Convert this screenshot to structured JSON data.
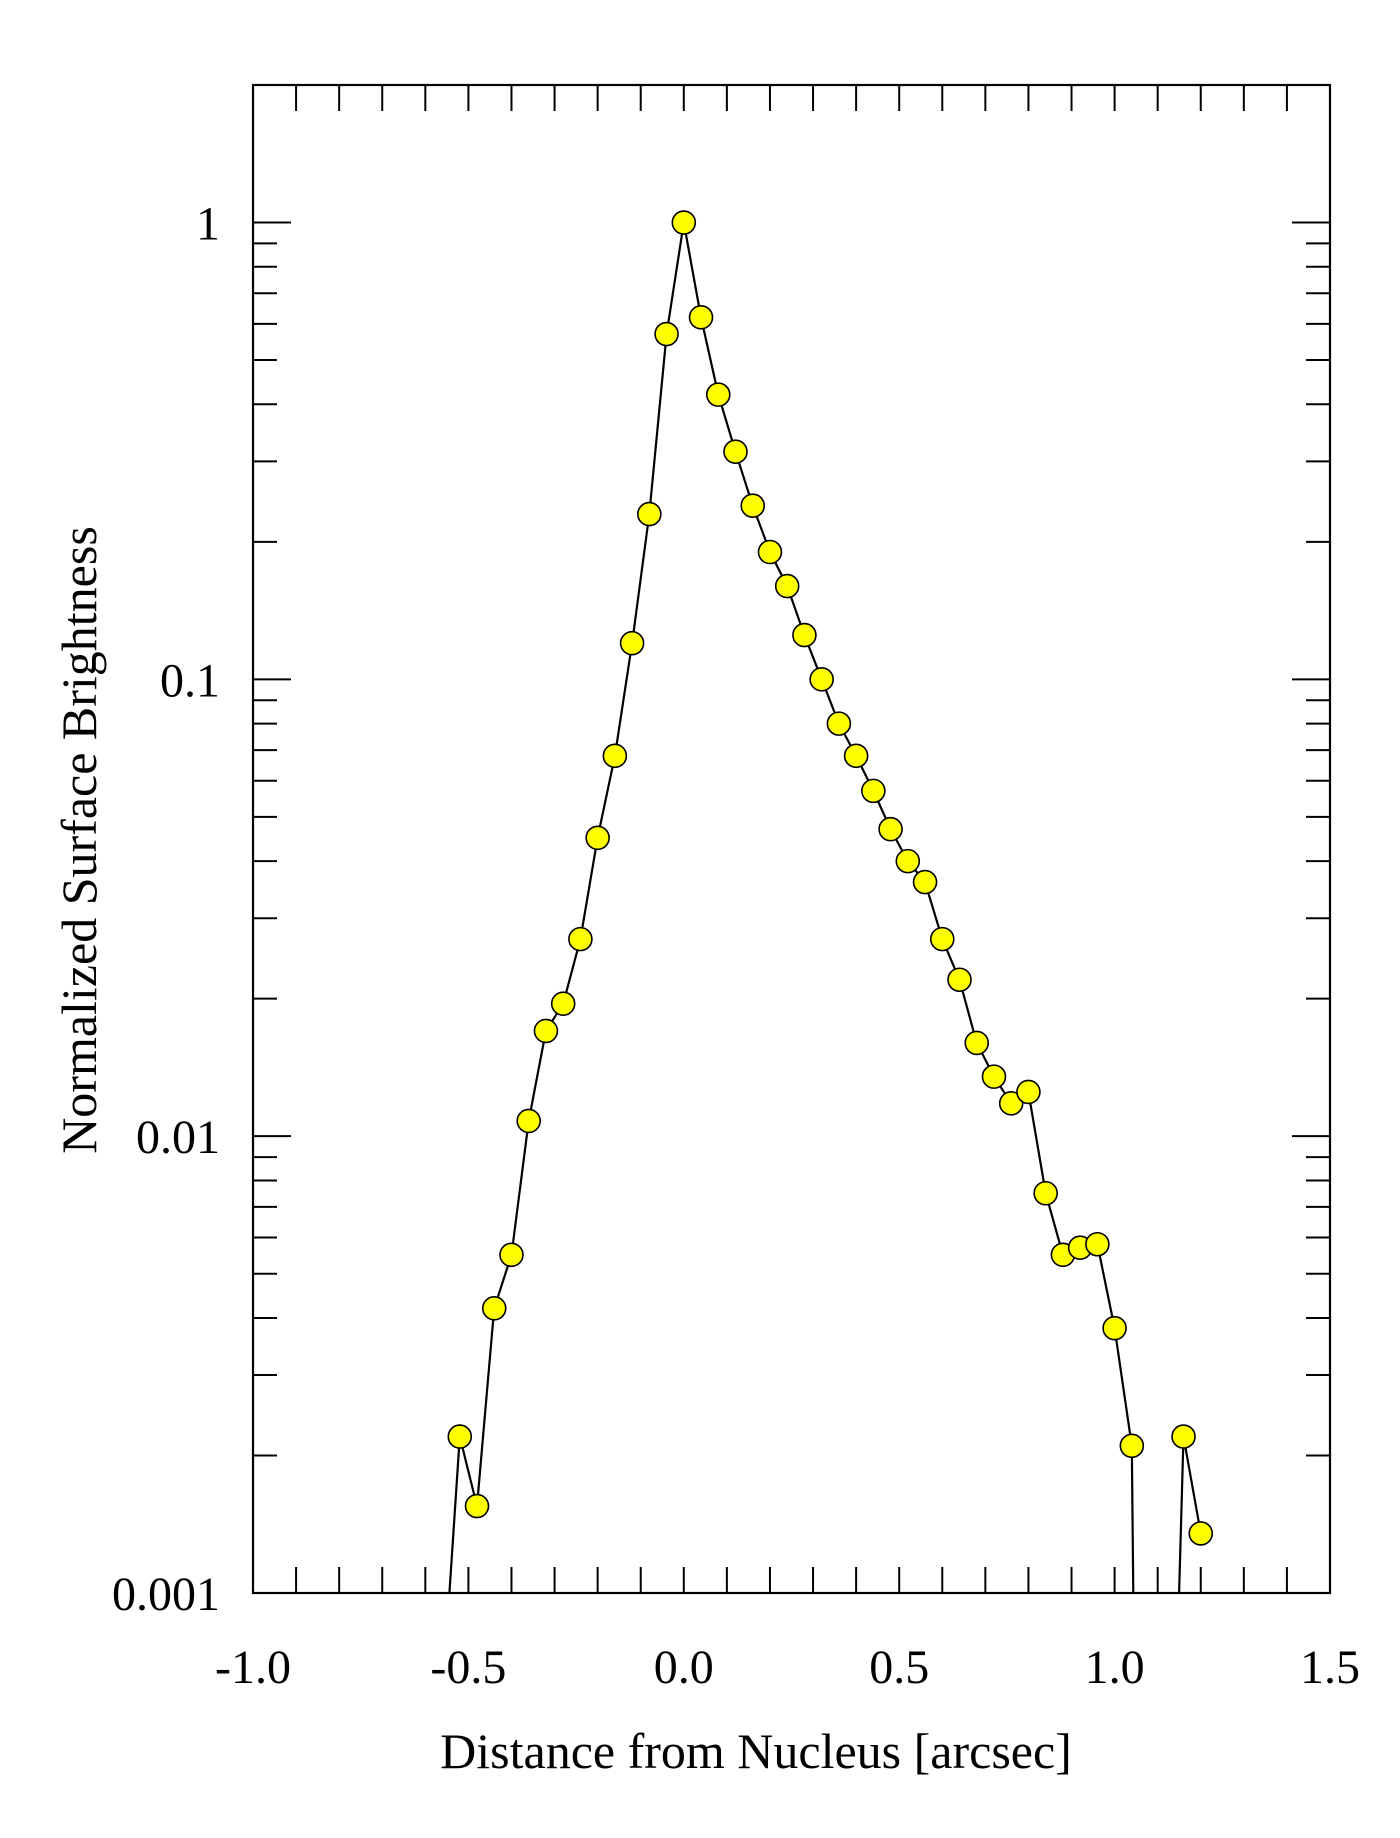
{
  "chart_data": {
    "type": "scatter",
    "xlabel": "Distance from Nucleus [arcsec]",
    "ylabel": "Normalized Surface Brightness",
    "xlim": [
      -1.0,
      1.5
    ],
    "ylim": [
      0.001,
      2.0
    ],
    "y_scale": "log",
    "x_ticks": [
      -1.0,
      -0.5,
      0.0,
      0.5,
      1.0,
      1.5
    ],
    "x_tick_labels": [
      "-1.0",
      "-0.5",
      "0.0",
      "0.5",
      "1.0",
      "1.5"
    ],
    "y_ticks": [
      0.001,
      0.01,
      0.1,
      1
    ],
    "y_tick_labels": [
      "0.001",
      "0.01",
      "0.1",
      "1"
    ],
    "grid": false,
    "marker_color": "#ffff00",
    "marker_edge_color": "#000000",
    "line_color": "#000000",
    "series": [
      {
        "x": [
          -0.52,
          -0.48,
          -0.44,
          -0.4,
          -0.36,
          -0.32,
          -0.28,
          -0.24,
          -0.2,
          -0.16,
          -0.12,
          -0.08,
          -0.04,
          0.0,
          0.04,
          0.08,
          0.12,
          0.16,
          0.2,
          0.24,
          0.28,
          0.32,
          0.36,
          0.4,
          0.44,
          0.48,
          0.52,
          0.56,
          0.6,
          0.64,
          0.68,
          0.72,
          0.76,
          0.8,
          0.84,
          0.88,
          0.92,
          0.96,
          1.0,
          1.04,
          1.16,
          1.2
        ],
        "y": [
          0.0022,
          0.00155,
          0.0042,
          0.0055,
          0.0108,
          0.017,
          0.0195,
          0.027,
          0.045,
          0.068,
          0.12,
          0.23,
          0.57,
          1.0,
          0.62,
          0.42,
          0.315,
          0.24,
          0.19,
          0.16,
          0.125,
          0.1,
          0.08,
          0.068,
          0.057,
          0.047,
          0.04,
          0.036,
          0.027,
          0.022,
          0.016,
          0.0135,
          0.0118,
          0.0125,
          0.0075,
          0.0055,
          0.0057,
          0.0058,
          0.0038,
          0.0021,
          0.0022,
          0.00135
        ]
      }
    ]
  }
}
